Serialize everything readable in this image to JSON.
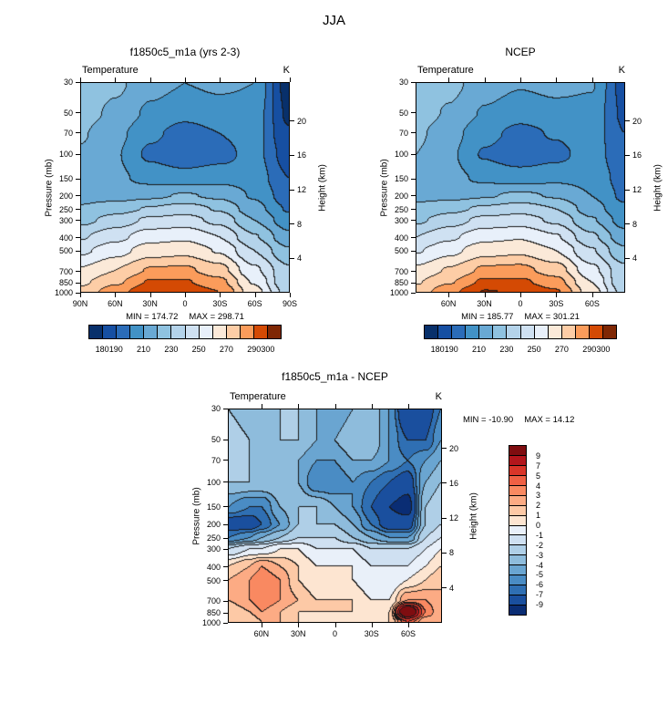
{
  "title": "JJA",
  "scales": {
    "temp": {
      "levels": [
        180,
        190,
        200,
        210,
        220,
        230,
        240,
        250,
        260,
        270,
        280,
        290,
        300
      ],
      "colors": [
        "#08306b",
        "#164fa2",
        "#2b6cb8",
        "#4292c6",
        "#69a9d4",
        "#8fc2e0",
        "#b4d3ea",
        "#cfe1f2",
        "#e8f0fa",
        "#fbe9d8",
        "#fdcda6",
        "#fb9c5b",
        "#d44a04",
        "#7f2704"
      ],
      "tick_labels": [
        180,
        190,
        210,
        230,
        250,
        270,
        290,
        300
      ]
    },
    "diff": {
      "levels": [
        -9,
        -7,
        -6,
        -5,
        -4,
        -3,
        -2,
        -1,
        0,
        1,
        2,
        3,
        4,
        5,
        7,
        9
      ],
      "colors": [
        "#0a2d74",
        "#1a4f9e",
        "#2f6fb3",
        "#4a8cc4",
        "#6aa5d1",
        "#8ebcdc",
        "#afcfe7",
        "#cfe0f1",
        "#e9f0f9",
        "#fde5d1",
        "#fdc9a6",
        "#fcab84",
        "#f98961",
        "#ef6044",
        "#d93529",
        "#b3161c",
        "#7f0d10"
      ],
      "bar_labels": [
        "9",
        "7",
        "5",
        "4",
        "3",
        "2",
        "1",
        "0",
        "-1",
        "-2",
        "-3",
        "-4",
        "-5",
        "-6",
        "-7",
        "-9"
      ]
    }
  },
  "chart_data": [
    {
      "type": "heatmap",
      "title": "f1850c5_m1a (yrs 2-3)",
      "field": "Temperature",
      "units": "K",
      "ylabel": "Pressure (mb)",
      "y2label": "Height (km)",
      "scale": "temp",
      "stats": {
        "min": 174.72,
        "max": 298.71
      },
      "stats_text": {
        "min": "MIN = 174.72",
        "max": "MAX = 298.71"
      },
      "lat_range": [
        90,
        -90
      ],
      "xticks": [
        {
          "v": 90,
          "label": "90N"
        },
        {
          "v": 60,
          "label": "60N"
        },
        {
          "v": 30,
          "label": "30N"
        },
        {
          "v": 0,
          "label": "0"
        },
        {
          "v": -30,
          "label": "30S"
        },
        {
          "v": -60,
          "label": "60S"
        },
        {
          "v": -90,
          "label": "90S"
        }
      ],
      "pressure_ticks": [
        30,
        50,
        70,
        100,
        150,
        200,
        250,
        300,
        400,
        500,
        700,
        850,
        1000
      ],
      "height_ticks": [
        4,
        8,
        12,
        16,
        20
      ],
      "lats": [
        90,
        60,
        30,
        0,
        -30,
        -60,
        -90
      ],
      "pressures": [
        30,
        50,
        70,
        100,
        150,
        200,
        250,
        300,
        400,
        500,
        700,
        850,
        1000
      ],
      "values": [
        [
          226,
          222,
          214,
          210,
          212,
          210,
          175
        ],
        [
          224,
          218,
          208,
          203,
          206,
          206,
          178
        ],
        [
          221,
          213,
          202,
          196,
          200,
          205,
          181
        ],
        [
          219,
          211,
          198,
          192,
          196,
          204,
          185
        ],
        [
          217,
          212,
          207,
          205,
          207,
          206,
          190
        ],
        [
          217,
          216,
          218,
          221,
          218,
          209,
          194
        ],
        [
          221,
          226,
          231,
          235,
          229,
          214,
          199
        ],
        [
          227,
          234,
          242,
          244,
          237,
          220,
          204
        ],
        [
          239,
          247,
          256,
          258,
          250,
          231,
          213
        ],
        [
          248,
          256,
          265,
          267,
          259,
          240,
          221
        ],
        [
          261,
          270,
          281,
          282,
          274,
          252,
          232
        ],
        [
          268,
          278,
          291,
          291,
          283,
          259,
          230
        ],
        [
          273,
          286,
          298,
          297,
          290,
          264,
          235
        ]
      ]
    },
    {
      "type": "heatmap",
      "title": "NCEP",
      "field": "Temperature",
      "units": "K",
      "ylabel": "Pressure (mb)",
      "y2label": "Height (km)",
      "scale": "temp",
      "stats": {
        "min": 185.77,
        "max": 301.21
      },
      "stats_text": {
        "min": "MIN = 185.77",
        "max": "MAX = 301.21"
      },
      "lat_range": [
        87.5,
        -87.5
      ],
      "xticks": [
        {
          "v": 60,
          "label": "60N"
        },
        {
          "v": 30,
          "label": "30N"
        },
        {
          "v": 0,
          "label": "0"
        },
        {
          "v": -30,
          "label": "30S"
        },
        {
          "v": -60,
          "label": "60S"
        }
      ],
      "pressure_ticks": [
        30,
        50,
        70,
        100,
        150,
        200,
        250,
        300,
        400,
        500,
        700,
        850,
        1000
      ],
      "height_ticks": [
        4,
        8,
        12,
        16,
        20
      ],
      "lats": [
        87.5,
        60,
        30,
        0,
        -30,
        -60,
        -87.5
      ],
      "pressures": [
        30,
        50,
        70,
        100,
        150,
        200,
        250,
        300,
        400,
        500,
        700,
        850,
        1000
      ],
      "values": [
        [
          227,
          223,
          215,
          211,
          213,
          211,
          186
        ],
        [
          225,
          219,
          209,
          204,
          207,
          207,
          188
        ],
        [
          222,
          214,
          203,
          197,
          201,
          206,
          190
        ],
        [
          220,
          212,
          199,
          193,
          197,
          205,
          193
        ],
        [
          218,
          213,
          208,
          206,
          208,
          207,
          196
        ],
        [
          218,
          217,
          219,
          222,
          219,
          210,
          198
        ],
        [
          222,
          227,
          232,
          236,
          230,
          215,
          202
        ],
        [
          228,
          235,
          243,
          245,
          238,
          221,
          206
        ],
        [
          240,
          248,
          257,
          259,
          251,
          232,
          214
        ],
        [
          249,
          257,
          266,
          268,
          260,
          241,
          222
        ],
        [
          262,
          271,
          282,
          283,
          275,
          253,
          233
        ],
        [
          269,
          279,
          292,
          292,
          284,
          260,
          231
        ],
        [
          274,
          287,
          300.5,
          299,
          291,
          265,
          236
        ]
      ]
    },
    {
      "type": "heatmap",
      "title": "f1850c5_m1a - NCEP",
      "field": "Temperature",
      "units": "K",
      "ylabel": "Pressure (mb)",
      "y2label": "Height (km)",
      "scale": "diff",
      "stats": {
        "min": -10.9,
        "max": 14.12
      },
      "stats_text": {
        "min": "MIN = -10.90",
        "max": "MAX = 14.12"
      },
      "lat_range": [
        87.5,
        -87.5
      ],
      "xticks": [
        {
          "v": 60,
          "label": "60N"
        },
        {
          "v": 30,
          "label": "30N"
        },
        {
          "v": 0,
          "label": "0"
        },
        {
          "v": -30,
          "label": "30S"
        },
        {
          "v": -60,
          "label": "60S"
        }
      ],
      "pressure_ticks": [
        30,
        50,
        70,
        100,
        150,
        200,
        250,
        300,
        400,
        500,
        700,
        850,
        1000
      ],
      "height_ticks": [
        4,
        8,
        12,
        16,
        20
      ],
      "lats": [
        87.5,
        70,
        60,
        45,
        30,
        15,
        0,
        -15,
        -30,
        -45,
        -60,
        -75,
        -87.5
      ],
      "pressures": [
        30,
        50,
        70,
        100,
        150,
        200,
        250,
        300,
        400,
        500,
        700,
        850,
        1000
      ],
      "values": [
        [
          -3,
          -4,
          -4,
          -3,
          -3,
          -4,
          -5,
          -4,
          -3,
          -5,
          -9,
          -8,
          -6
        ],
        [
          -2,
          -3,
          -4,
          -3,
          -3,
          -4,
          -4,
          -3,
          -3,
          -5,
          -7,
          -7,
          -5
        ],
        [
          -2,
          -3,
          -4,
          -4,
          -4,
          -5,
          -5,
          -4,
          -4,
          -5,
          -6,
          -5,
          -4
        ],
        [
          -3,
          -3,
          -3,
          -3,
          -4,
          -6,
          -6,
          -5,
          -6,
          -7,
          -8,
          -4,
          -3
        ],
        [
          -5,
          -6,
          -6,
          -4,
          -3,
          -3,
          -4,
          -5,
          -7,
          -9,
          -10,
          -3,
          -2
        ],
        [
          -8,
          -8,
          -7,
          -5,
          -3,
          -3,
          -3,
          -4,
          -6,
          -8,
          -8,
          -3,
          -2
        ],
        [
          -6,
          -5,
          -4,
          -3,
          -2,
          -2,
          -2,
          -3,
          -4,
          -5,
          -5,
          -2,
          -1
        ],
        [
          -2,
          -1,
          -1,
          0,
          0,
          -1,
          -1,
          -1,
          -2,
          -2,
          -2,
          -1,
          0
        ],
        [
          1,
          2,
          3,
          2,
          1,
          0,
          0,
          0,
          -1,
          -1,
          -1,
          0,
          1
        ],
        [
          2,
          3,
          4,
          3,
          1,
          0,
          0,
          0,
          -1,
          -1,
          0,
          1,
          2
        ],
        [
          2,
          3,
          4,
          3,
          2,
          1,
          1,
          1,
          0,
          0,
          3,
          3,
          2
        ],
        [
          1,
          2,
          3,
          2,
          1,
          1,
          1,
          1,
          0,
          1,
          14,
          4,
          2
        ],
        [
          1,
          1,
          2,
          2,
          1,
          0,
          0,
          0,
          0,
          1,
          5,
          2,
          2
        ]
      ]
    }
  ]
}
